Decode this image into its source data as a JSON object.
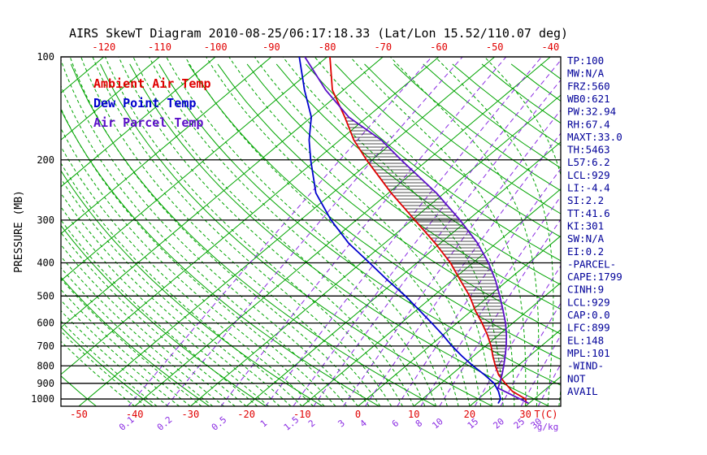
{
  "title": "AIRS SkewT Diagram 2010-08-25/06:17:18.33 (Lat/Lon 15.52/110.07 deg)",
  "axes": {
    "pressure_label": "PRESSURE (MB)",
    "pressure_ticks": [
      100,
      200,
      300,
      400,
      500,
      600,
      700,
      800,
      900,
      1000
    ],
    "top_temp_ticks_c": [
      -120,
      -110,
      -100,
      -90,
      -80,
      -70,
      -60,
      -50,
      -40
    ],
    "bottom_temp_ticks_c": [
      -50,
      -40,
      -30,
      -20,
      -10,
      0,
      10,
      20,
      30
    ],
    "bottom_unit": "T(C)",
    "mixing_unit": "g/kg",
    "mixing_ratio_ticks_gkg": [
      0.1,
      0.2,
      0.5,
      1,
      1.5,
      2,
      3,
      4,
      6,
      8,
      10,
      15,
      20,
      25,
      30
    ]
  },
  "legend": [
    {
      "label": "Ambient Air Temp",
      "color": "#e00000"
    },
    {
      "label": "Dew Point Temp",
      "color": "#0000cd"
    },
    {
      "label": "Air Parcel Temp",
      "color": "#5a0fc8"
    }
  ],
  "stats_panel": [
    "TP:100",
    "MW:N/A",
    "FRZ:560",
    "WB0:621",
    "PW:32.94",
    "RH:67.4",
    "MAXT:33.0",
    "TH:5463",
    "L57:6.2",
    "LCL:929",
    "LI:-4.4",
    "SI:2.2",
    "TT:41.6",
    "KI:301",
    "SW:N/A",
    "EI:0.2",
    "-PARCEL-",
    "CAPE:1799",
    "CINH:9",
    "LCL:929",
    "CAP:0.0",
    "LFC:899",
    "EL:148",
    "MPL:101",
    "-WIND-",
    "NOT",
    "AVAIL"
  ],
  "colors": {
    "isolines_green": "#00a400",
    "mixing_purple": "#8a2be2",
    "pressure_lines": "#000000",
    "top_bottom_ticks": "#e00000",
    "stats_text": "#000099",
    "hatch": "#111111"
  },
  "chart_data": {
    "type": "line",
    "chart_kind": "skewt-log-p",
    "title": "AIRS SkewT Diagram 2010-08-25/06:17:18.33 (Lat/Lon 15.52/110.07 deg)",
    "xlabel": "T(C)",
    "ylabel": "PRESSURE (MB)",
    "y_scale": "log",
    "ylim": [
      1050,
      100
    ],
    "xlim_bottom_axis_c": [
      -50,
      35
    ],
    "grid": "skewed isotherms every 10 C, dry adiabats, dashed moist adiabats, dashed mixing-ratio lines",
    "legend_position": "top-left inside plot",
    "isolines": {
      "isotherm_step_c": 10,
      "dry_adiabat_step_c": 10,
      "moist_adiabat_step_c": 2,
      "mixing_ratio_gkg": [
        0.1,
        0.2,
        0.5,
        1,
        1.5,
        2,
        3,
        4,
        6,
        8,
        10,
        15,
        20,
        25,
        30
      ]
    },
    "series": [
      {
        "name": "Ambient Air Temp",
        "color": "#e00000",
        "points": [
          [
            1030,
            29.5
          ],
          [
            1000,
            28.5
          ],
          [
            950,
            24.5
          ],
          [
            900,
            21.5
          ],
          [
            850,
            18.5
          ],
          [
            800,
            16
          ],
          [
            750,
            13.5
          ],
          [
            700,
            11
          ],
          [
            650,
            8
          ],
          [
            600,
            4.5
          ],
          [
            550,
            0.5
          ],
          [
            500,
            -3.5
          ],
          [
            450,
            -8.5
          ],
          [
            400,
            -14
          ],
          [
            350,
            -21
          ],
          [
            300,
            -29.5
          ],
          [
            250,
            -39.5
          ],
          [
            200,
            -51
          ],
          [
            175,
            -57.5
          ],
          [
            150,
            -64
          ],
          [
            125,
            -72
          ],
          [
            100,
            -79.5
          ]
        ]
      },
      {
        "name": "Dew Point Temp",
        "color": "#0000cd",
        "points": [
          [
            1030,
            24.5
          ],
          [
            1000,
            24
          ],
          [
            950,
            22
          ],
          [
            900,
            19.5
          ],
          [
            850,
            16
          ],
          [
            800,
            12
          ],
          [
            750,
            8
          ],
          [
            700,
            4
          ],
          [
            650,
            0
          ],
          [
            600,
            -4.5
          ],
          [
            550,
            -9.5
          ],
          [
            500,
            -15
          ],
          [
            450,
            -21.5
          ],
          [
            400,
            -28.5
          ],
          [
            350,
            -36.5
          ],
          [
            300,
            -44.5
          ],
          [
            250,
            -53
          ],
          [
            200,
            -61
          ],
          [
            175,
            -65.5
          ],
          [
            150,
            -70
          ],
          [
            125,
            -77
          ],
          [
            100,
            -85
          ]
        ]
      },
      {
        "name": "Air Parcel Temp",
        "color": "#5a0fc8",
        "points": [
          [
            1030,
            30
          ],
          [
            1000,
            27.5
          ],
          [
            950,
            23.1
          ],
          [
            929,
            21.2
          ],
          [
            900,
            20.5
          ],
          [
            850,
            19.1
          ],
          [
            800,
            17.5
          ],
          [
            750,
            15.7
          ],
          [
            700,
            13.7
          ],
          [
            650,
            11.4
          ],
          [
            600,
            8.7
          ],
          [
            550,
            5.5
          ],
          [
            500,
            1.9
          ],
          [
            450,
            -2.2
          ],
          [
            400,
            -7.2
          ],
          [
            350,
            -13.4
          ],
          [
            300,
            -21.4
          ],
          [
            250,
            -31.4
          ],
          [
            200,
            -44.8
          ],
          [
            175,
            -52.6
          ],
          [
            150,
            -63.3
          ],
          [
            125,
            -73.2
          ],
          [
            100,
            -84
          ]
        ]
      }
    ]
  }
}
